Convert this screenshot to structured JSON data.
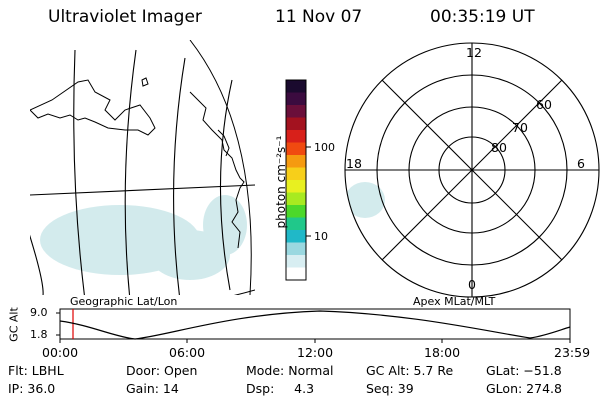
{
  "header": {
    "instrument": "Ultraviolet Imager",
    "date": "11 Nov 07",
    "time": "00:35:19  UT"
  },
  "map_left": {
    "label": "Geographic Lat/Lon"
  },
  "map_right": {
    "label": "Apex  MLat/MLT",
    "mlt_labels": {
      "top": "12",
      "left": "18",
      "right": "6",
      "bottom": "0"
    },
    "lat_labels": [
      "60",
      "70",
      "80"
    ]
  },
  "colorbar": {
    "unit": "photon cm⁻²s⁻¹",
    "ticks": [
      "100",
      "10"
    ],
    "colors": [
      "#1a0a2e",
      "#3b0b3f",
      "#6a0f3a",
      "#a3121f",
      "#d8201a",
      "#f04a10",
      "#f59a10",
      "#f7cf1a",
      "#e8f020",
      "#a8ea20",
      "#4cd82a",
      "#20c88a",
      "#20b8c8",
      "#9ad8e0",
      "#d8eef2",
      "#ffffff"
    ]
  },
  "timeline": {
    "ylabel": "GC Alt",
    "y_ticks": [
      "9.0",
      "1.8"
    ],
    "x_ticks": [
      "00:00",
      "06:00",
      "12:00",
      "18:00",
      "23:59"
    ],
    "current_marker_color": "#e00000"
  },
  "info": {
    "row1": [
      "Flt: LBHL",
      "Door: Open",
      "Mode: Normal",
      "GC Alt: 5.7 Re",
      "GLat: −51.8"
    ],
    "row2": [
      "IP: 36.0",
      "Gain: 14",
      "Dsp:     4.3",
      "Seq: 39",
      "GLon: 274.8"
    ]
  }
}
